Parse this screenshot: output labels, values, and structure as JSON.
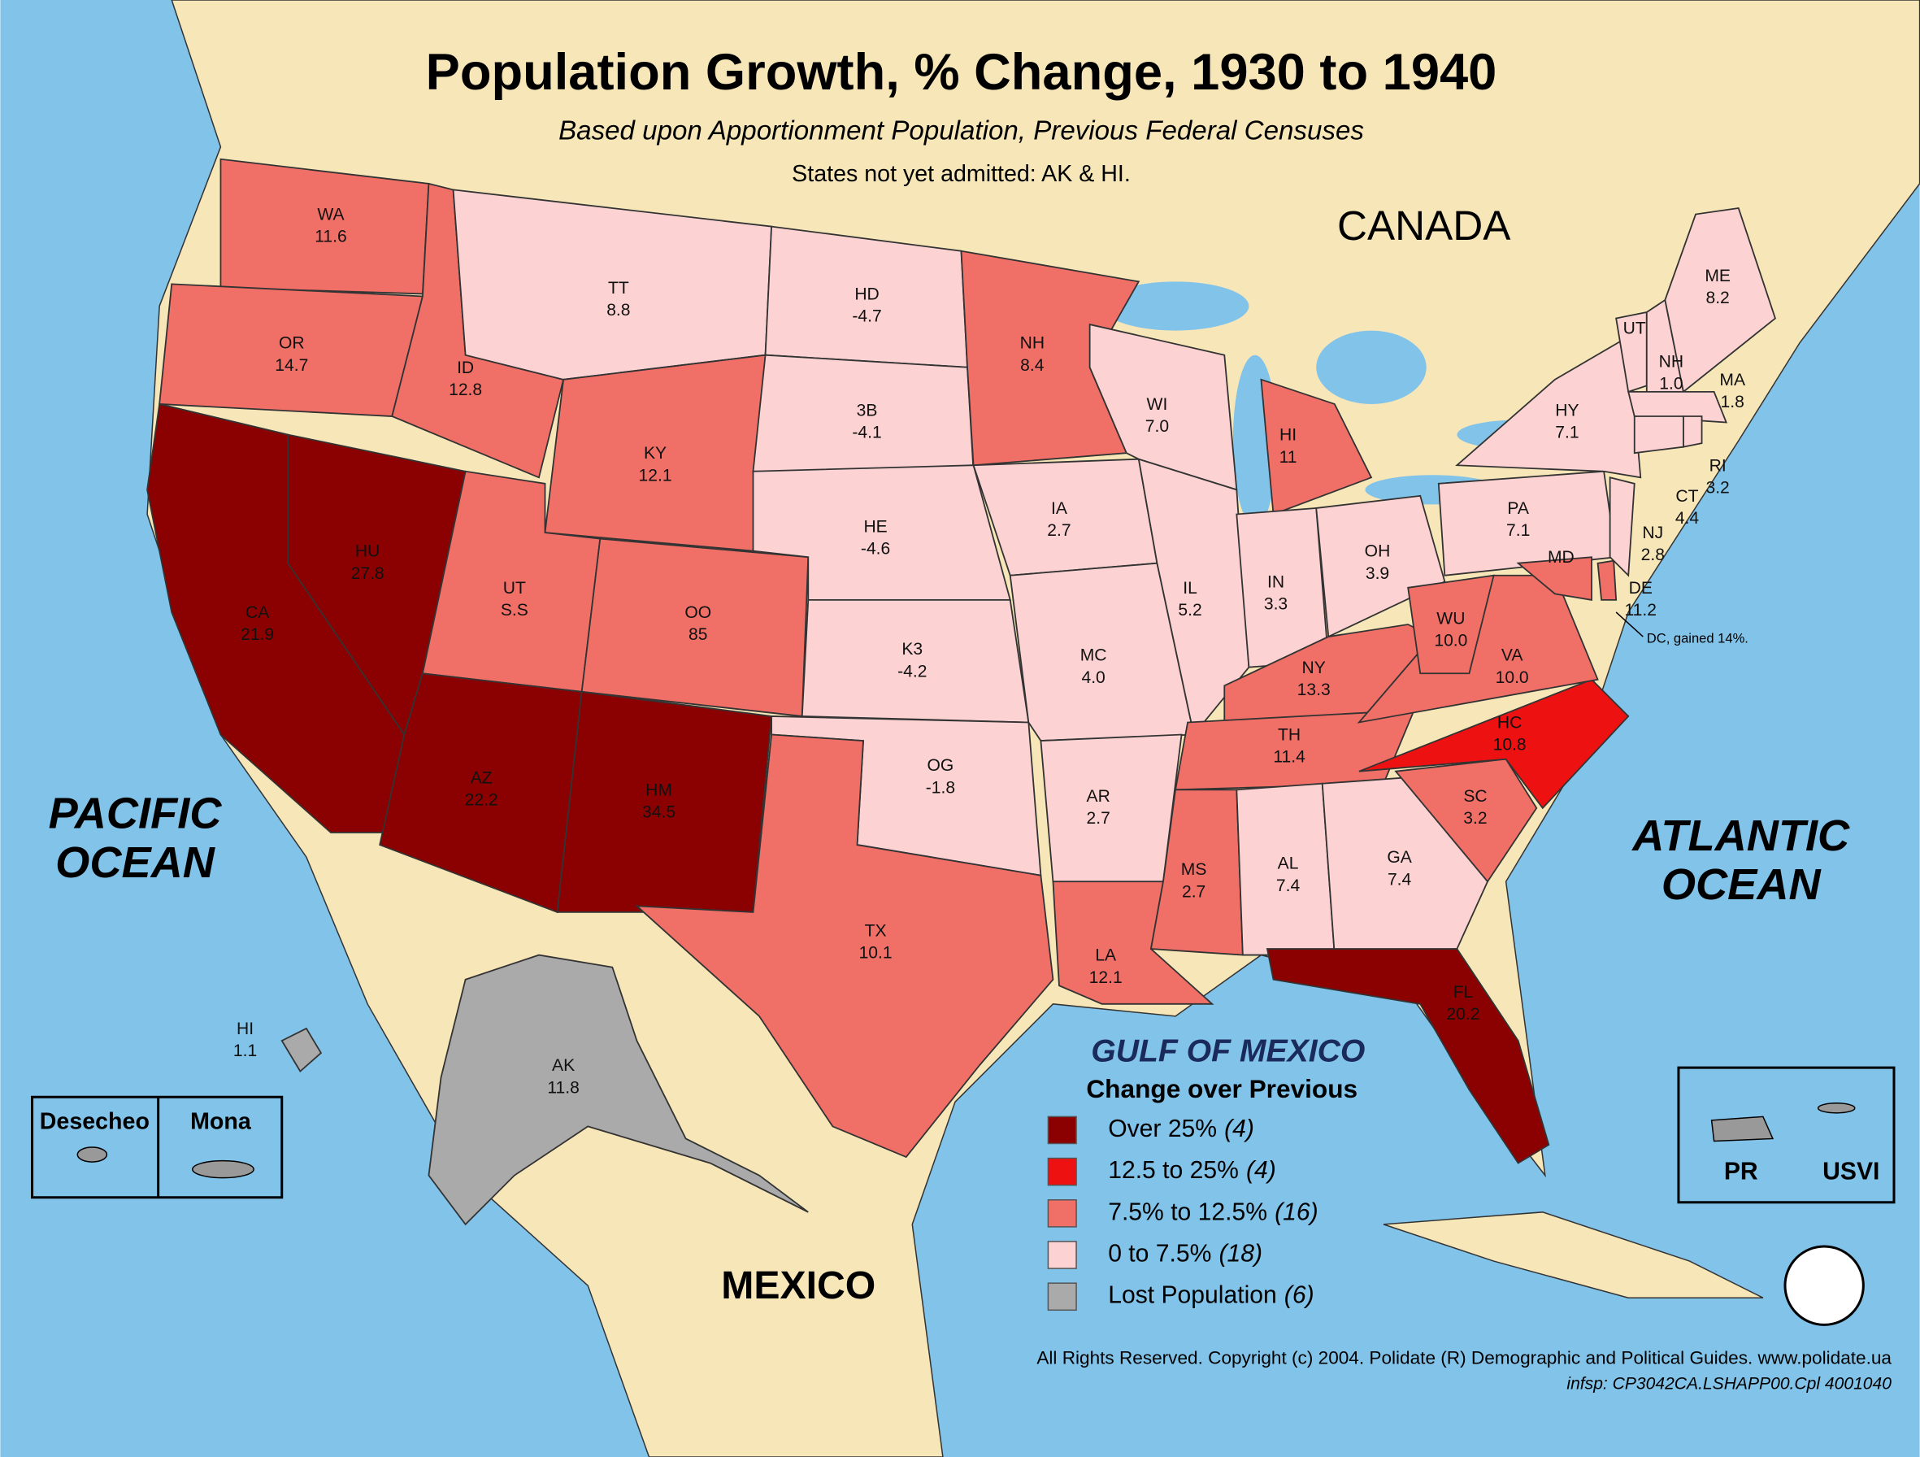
{
  "header": {
    "title": "Population Growth, % Change, 1930 to 1940",
    "subtitle": "Based upon Apportionment Population, Previous Federal Censuses",
    "note": "States not yet admitted: AK & HI."
  },
  "places": {
    "canada": "CANADA",
    "pacific": [
      "PACIFIC",
      "OCEAN"
    ],
    "atlantic": [
      "ATLANTIC",
      "OCEAN"
    ],
    "gulf": "GULF OF MEXICO",
    "mexico": "MEXICO"
  },
  "legend": {
    "title": "Change over Previous",
    "items": [
      {
        "label": "Over 25%",
        "count": "(4)",
        "color": "#8b0000"
      },
      {
        "label": "12.5 to 25%",
        "count": "(4)",
        "color": "#ee1111"
      },
      {
        "label": "7.5% to 12.5%",
        "count": "(16)",
        "color": "#f07068"
      },
      {
        "label": "0 to 7.5%",
        "count": "(18)",
        "color": "#fcd2d2"
      },
      {
        "label": "Lost Population",
        "count": "(6)",
        "color": "#aaaaaa"
      }
    ]
  },
  "states": [
    {
      "abbr": "WA",
      "value": "11.6",
      "class": 2
    },
    {
      "abbr": "OR",
      "value": "14.7",
      "class": 2
    },
    {
      "abbr": "CA",
      "value": "21.9",
      "class": 0
    },
    {
      "abbr": "HU",
      "value": "27.8",
      "class": 0
    },
    {
      "abbr": "ID",
      "value": "12.8",
      "class": 2
    },
    {
      "abbr": "TT",
      "value": "8.8",
      "class": 3
    },
    {
      "abbr": "KY",
      "value": "12.1",
      "class": 2
    },
    {
      "abbr": "UT",
      "value": "S.S",
      "class": 2
    },
    {
      "abbr": "OO",
      "value": "85",
      "class": 2
    },
    {
      "abbr": "AZ",
      "value": "22.2",
      "class": 0
    },
    {
      "abbr": "HM",
      "value": "34.5",
      "class": 0
    },
    {
      "abbr": "HD",
      "value": "-4.7",
      "class": 3
    },
    {
      "abbr": "3B",
      "value": "-4.1",
      "class": 3
    },
    {
      "abbr": "HE",
      "value": "-4.6",
      "class": 3
    },
    {
      "abbr": "K3",
      "value": "-4.2",
      "class": 3
    },
    {
      "abbr": "OG",
      "value": "-1.8",
      "class": 3
    },
    {
      "abbr": "TX",
      "value": "10.1",
      "class": 2
    },
    {
      "abbr": "NH",
      "value": "8.4",
      "class": 2
    },
    {
      "abbr": "IA",
      "value": "2.7",
      "class": 3
    },
    {
      "abbr": "MC",
      "value": "4.0",
      "class": 3
    },
    {
      "abbr": "AR",
      "value": "2.7",
      "class": 3
    },
    {
      "abbr": "LA",
      "value": "12.1",
      "class": 2
    },
    {
      "abbr": "WI",
      "value": "7.0",
      "class": 3
    },
    {
      "abbr": "IL",
      "value": "5.2",
      "class": 3
    },
    {
      "abbr": "HI",
      "value": "11",
      "class": 2
    },
    {
      "abbr": "IN",
      "value": "3.3",
      "class": 3
    },
    {
      "abbr": "OH",
      "value": "3.9",
      "class": 3
    },
    {
      "abbr": "NY",
      "value": "13.3",
      "class": 2
    },
    {
      "abbr": "TH",
      "value": "11.4",
      "class": 2
    },
    {
      "abbr": "MS",
      "value": "2.7",
      "class": 2
    },
    {
      "abbr": "AL",
      "value": "7.4",
      "class": 3
    },
    {
      "abbr": "GA",
      "value": "7.4",
      "class": 3
    },
    {
      "abbr": "FL",
      "value": "20.2",
      "class": 0
    },
    {
      "abbr": "SC",
      "value": "3.2",
      "class": 2
    },
    {
      "abbr": "HC",
      "value": "10.8",
      "class": 1
    },
    {
      "abbr": "VA",
      "value": "10.0",
      "class": 2
    },
    {
      "abbr": "WU",
      "value": "10.0",
      "class": 2
    },
    {
      "abbr": "PA",
      "value": "7.1",
      "class": 3
    },
    {
      "abbr": "HY",
      "value": "7.1",
      "class": 3
    },
    {
      "abbr": "MD",
      "value": "",
      "class": 2
    },
    {
      "abbr": "DE",
      "value": "11.2",
      "class": 2
    },
    {
      "abbr": "NJ",
      "value": "2.8",
      "class": 3
    },
    {
      "abbr": "UT",
      "value": "",
      "class": 3
    },
    {
      "abbr": "NH",
      "value": "1.0",
      "class": 3
    },
    {
      "abbr": "ME",
      "value": "8.2",
      "class": 3
    },
    {
      "abbr": "MA",
      "value": "1.8",
      "class": 3
    },
    {
      "abbr": "CT",
      "value": "4.4",
      "class": 3
    },
    {
      "abbr": "RI",
      "value": "3.2",
      "class": 3
    },
    {
      "abbr": "AK",
      "value": "11.8",
      "class": 4
    },
    {
      "abbr": "HI",
      "value": "1.1",
      "class": 4
    }
  ],
  "dc_note": "DC, gained 14%.",
  "insets": {
    "desecheo": "Desecheo",
    "mona": "Mona",
    "pr": "PR",
    "usvi": "USVI"
  },
  "footer": {
    "copyright": "All Rights Reserved. Copyright (c) 2004. Polidate (R) Demographic and Political Guides. www.polidate.ua",
    "code": "infsp: CP3042CA.LSHAPP00.Cpl 4001040"
  }
}
